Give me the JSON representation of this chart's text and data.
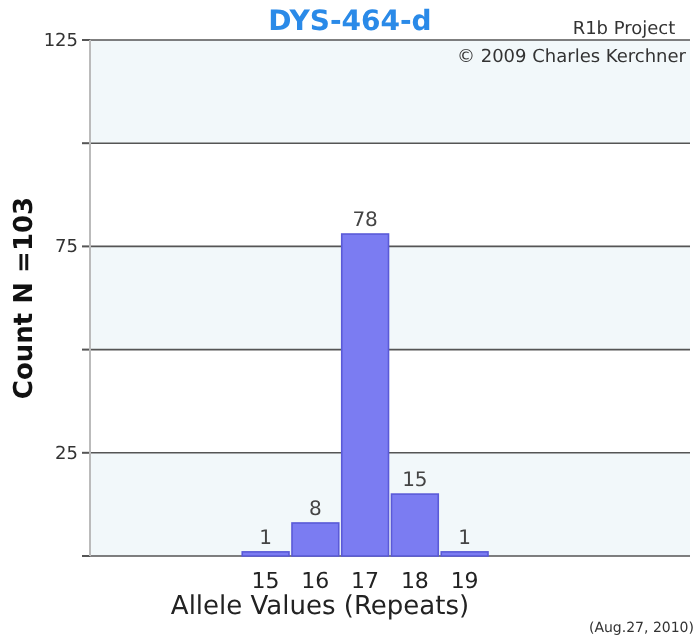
{
  "chart_data": {
    "type": "bar",
    "title": "DYS-464-d",
    "xlabel": "Allele Values (Repeats)",
    "ylabel": "Count N =103",
    "categories": [
      null,
      null,
      null,
      "15",
      "16",
      "17",
      "18",
      "19",
      null,
      null,
      null,
      null
    ],
    "values": [
      null,
      null,
      null,
      1,
      8,
      78,
      15,
      1,
      null,
      null,
      null,
      null
    ],
    "color": "#7b7cf2",
    "data_labels": true,
    "ylim": [
      0,
      125
    ],
    "yticks": [
      {
        "value": 0,
        "label": null
      },
      25,
      {
        "value": 50,
        "label": null
      },
      75,
      {
        "value": 100,
        "label": null
      },
      125
    ],
    "grid": "y",
    "annotations": [
      "R1b Project",
      "© 2009 Charles Kerchner",
      "(Aug.27, 2010)"
    ]
  }
}
